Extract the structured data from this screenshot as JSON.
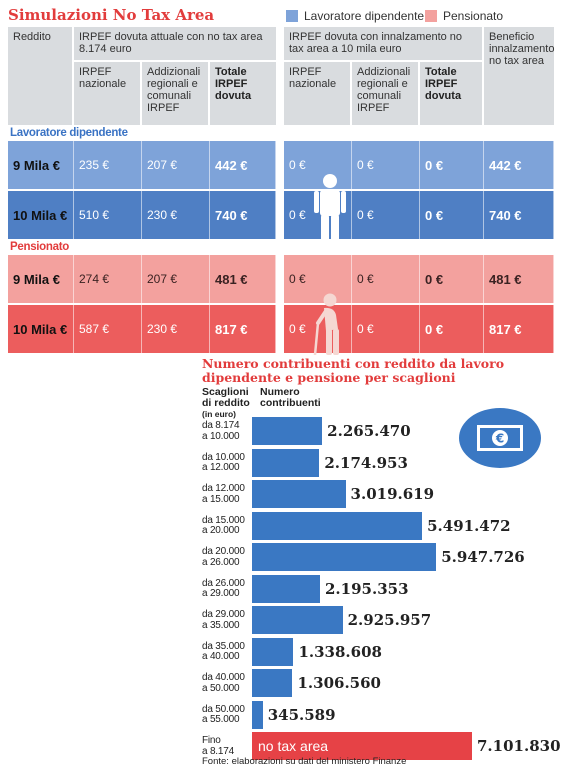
{
  "header": {
    "title": "Simulazioni No Tax Area",
    "legend": [
      {
        "label": "Lavoratore dipendente",
        "color": "#7ea3d9"
      },
      {
        "label": "Pensionato",
        "color": "#f3a19e"
      }
    ]
  },
  "table": {
    "col_reddito": "Reddito",
    "group_current": "IRPEF dovuta attuale con no tax area 8.174 euro",
    "group_raised": "IRPEF dovuta con innalzamento no tax area a 10 mila euro",
    "col_beneficio": "Beneficio innalzamento no tax area",
    "sub_irpef_naz": "IRPEF nazionale",
    "sub_addizionali": "Addizionali regionali e comunali IRPEF",
    "sub_totale": "Totale IRPEF dovuta",
    "sub_irpef_naz_2": "IRPEF nazionale",
    "sub_addizionali_2": "Addizionali regionali e comunali IRPEF",
    "sub_totale_2": "Totale IRPEF dovuta",
    "section_dipendente": "Lavoratore dipendente",
    "section_pensionato": "Pensionato",
    "rows_dipendente": [
      {
        "reddito": "9 Mila €",
        "naz": "235 €",
        "add": "207 €",
        "tot": "442 €",
        "naz2": "0 €",
        "add2": "0 €",
        "tot2": "0 €",
        "ben": "442 €"
      },
      {
        "reddito": "10 Mila €",
        "naz": "510 €",
        "add": "230 €",
        "tot": "740 €",
        "naz2": "0 €",
        "add2": "0 €",
        "tot2": "0 €",
        "ben": "740 €"
      }
    ],
    "rows_pensionato": [
      {
        "reddito": "9 Mila €",
        "naz": "274 €",
        "add": "207 €",
        "tot": "481 €",
        "naz2": "0 €",
        "add2": "0 €",
        "tot2": "0 €",
        "ben": "481 €"
      },
      {
        "reddito": "10 Mila €",
        "naz": "587 €",
        "add": "230 €",
        "tot": "817 €",
        "naz2": "0 €",
        "add2": "0 €",
        "tot2": "0 €",
        "ben": "817 €"
      }
    ],
    "colors": {
      "dip_light": "#7ea3d9",
      "dip_dark": "#4f7fc4",
      "pen_light": "#f3a19e",
      "pen_dark": "#ec5d5d",
      "section_dip": "#3a73c4",
      "section_pen": "#e23c3c",
      "header_bg": "#d9dcdf"
    }
  },
  "chart_data": {
    "type": "bar",
    "title": "Numero contribuenti con reddito da lavoro dipendente e pensione per scaglioni",
    "col_category": "Scaglioni di reddito",
    "col_category_unit": "(in euro)",
    "col_value": "Numero contribuenti",
    "categories": [
      [
        "da 8.174",
        "a 10.000"
      ],
      [
        "da 10.000",
        "a 12.000"
      ],
      [
        "da 12.000",
        "a 15.000"
      ],
      [
        "da 15.000",
        "a 20.000"
      ],
      [
        "da 20.000",
        "a 26.000"
      ],
      [
        "da 26.000",
        "a 29.000"
      ],
      [
        "da 29.000",
        "a 35.000"
      ],
      [
        "da 35.000",
        "a 40.000"
      ],
      [
        "da 40.000",
        "a 50.000"
      ],
      [
        "da 50.000",
        "a 55.000"
      ],
      [
        "Fino",
        "a 8.174"
      ]
    ],
    "values": [
      2265470,
      2174953,
      3019619,
      5491472,
      5947726,
      2195353,
      2925957,
      1338608,
      1306560,
      345589,
      7101830
    ],
    "value_labels": [
      "2.265.470",
      "2.174.953",
      "3.019.619",
      "5.491.472",
      "5.947.726",
      "2.195.353",
      "2.925.957",
      "1.338.608",
      "1.306.560",
      "345.589",
      "7.101.830"
    ],
    "highlight_index": 10,
    "highlight_label": "no tax area",
    "colors": {
      "bar": "#3a78c3",
      "highlight": "#e64246"
    }
  },
  "source": "Fonte: elaborazioni su dati del ministero Finanze"
}
